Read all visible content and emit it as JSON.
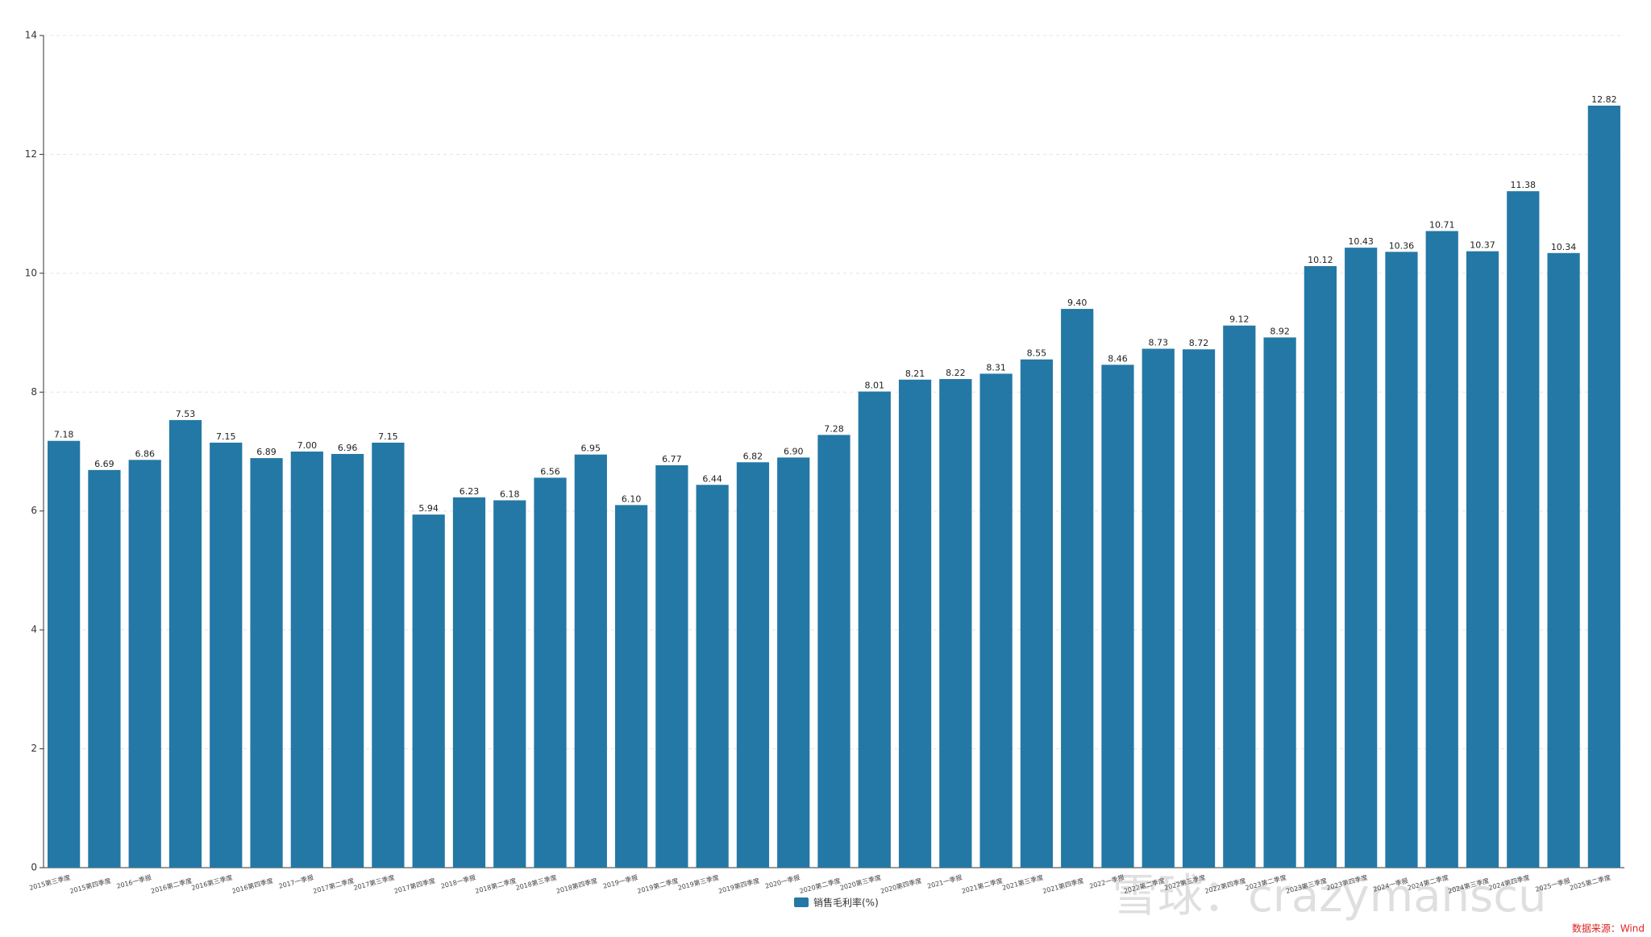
{
  "chart_data": {
    "type": "bar",
    "categories": [
      "2015第三季度",
      "2015第四季度",
      "2016一季报",
      "2016第二季度",
      "2016第三季度",
      "2016第四季度",
      "2017一季报",
      "2017第二季度",
      "2017第三季度",
      "2017第四季度",
      "2018一季报",
      "2018第二季度",
      "2018第三季度",
      "2018第四季度",
      "2019一季报",
      "2019第二季度",
      "2019第三季度",
      "2019第四季度",
      "2020一季报",
      "2020第二季度",
      "2020第三季度",
      "2020第四季度",
      "2021一季报",
      "2021第二季度",
      "2021第三季度",
      "2021第四季度",
      "2022一季报",
      "2022第二季度",
      "2022第三季度",
      "2022第四季度",
      "2023第二季度",
      "2023第三季度",
      "2023第四季度",
      "2024一季报",
      "2024第二季度",
      "2024第三季度",
      "2024第四季度",
      "2025一季报",
      "2025第二季度"
    ],
    "series": [
      {
        "name": "销售毛利率(%)",
        "color": "#2478a5",
        "values": [
          7.18,
          6.69,
          6.86,
          7.53,
          7.15,
          6.89,
          7.0,
          6.96,
          7.15,
          5.94,
          6.23,
          6.18,
          6.56,
          6.95,
          6.1,
          6.77,
          6.44,
          6.82,
          6.9,
          7.28,
          8.01,
          8.21,
          8.22,
          8.31,
          8.55,
          9.4,
          8.46,
          8.73,
          8.72,
          9.12,
          8.92,
          10.12,
          10.43,
          10.36,
          10.71,
          10.37,
          11.38,
          10.34,
          12.82
        ],
        "value_labels": [
          "7.18",
          "6.69",
          "6.86",
          "7.53",
          "7.15",
          "6.89",
          "7.00",
          "6.96",
          "7.15",
          "5.94",
          "6.23",
          "6.18",
          "6.56",
          "6.95",
          "6.10",
          "6.77",
          "6.44",
          "6.82",
          "6.90",
          "7.28",
          "8.01",
          "8.21",
          "8.22",
          "8.31",
          "8.55",
          "9.40",
          "8.46",
          "8.73",
          "8.72",
          "9.12",
          "8.92",
          "10.12",
          "10.43",
          "10.36",
          "10.71",
          "10.37",
          "11.38",
          "10.34",
          "12.82"
        ]
      }
    ],
    "ylim": [
      0,
      14
    ],
    "yticks": [
      0,
      2,
      4,
      6,
      8,
      10,
      12,
      14
    ],
    "grid": true,
    "legend": "bottom",
    "source": "数据来源：Wind",
    "watermark": "雪球：crazymanscu"
  }
}
